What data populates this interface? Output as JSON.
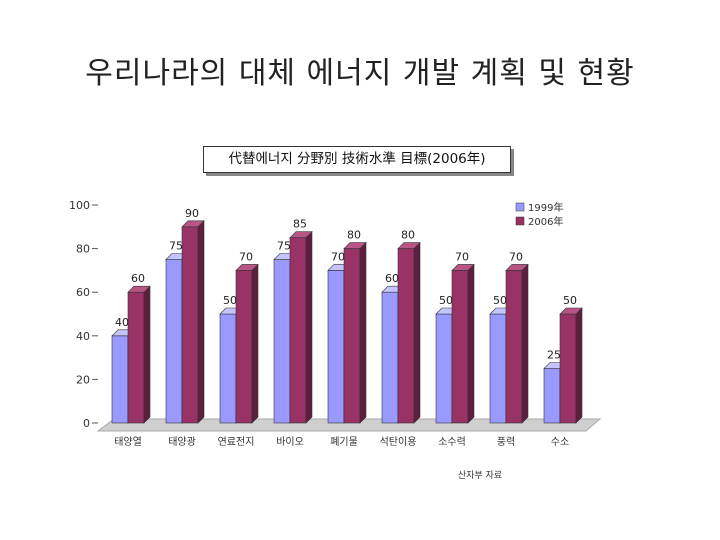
{
  "slide": {
    "title": "우리나라의 대체 에너지 개발 계획 및 현황",
    "source_note": "산자부 자료"
  },
  "colors": {
    "series_1": "#9999ff",
    "series_1_side": "#6b6bd6",
    "series_1_top": "#c4c4ff",
    "series_2": "#993366",
    "series_2_side": "#5e1f3f",
    "series_2_top": "#b85585",
    "floor": "#cfcfcf"
  },
  "chart_data": {
    "type": "bar",
    "title": "代替에너지 分野別 技術水準 目標(2006年)",
    "categories": [
      "태양열",
      "태양광",
      "연료전지",
      "바이오",
      "폐기물",
      "석탄이용",
      "소수력",
      "풍력",
      "수소"
    ],
    "series": [
      {
        "name": "1999年",
        "values": [
          40,
          75,
          50,
          75,
          70,
          60,
          50,
          50,
          25
        ]
      },
      {
        "name": "2006年",
        "values": [
          60,
          90,
          70,
          85,
          80,
          80,
          70,
          70,
          50
        ]
      }
    ],
    "y_ticks": [
      "0",
      "20",
      "40",
      "60",
      "80",
      "100"
    ],
    "ylim": [
      0,
      100
    ],
    "legend_position": "top-right",
    "grid": false
  }
}
